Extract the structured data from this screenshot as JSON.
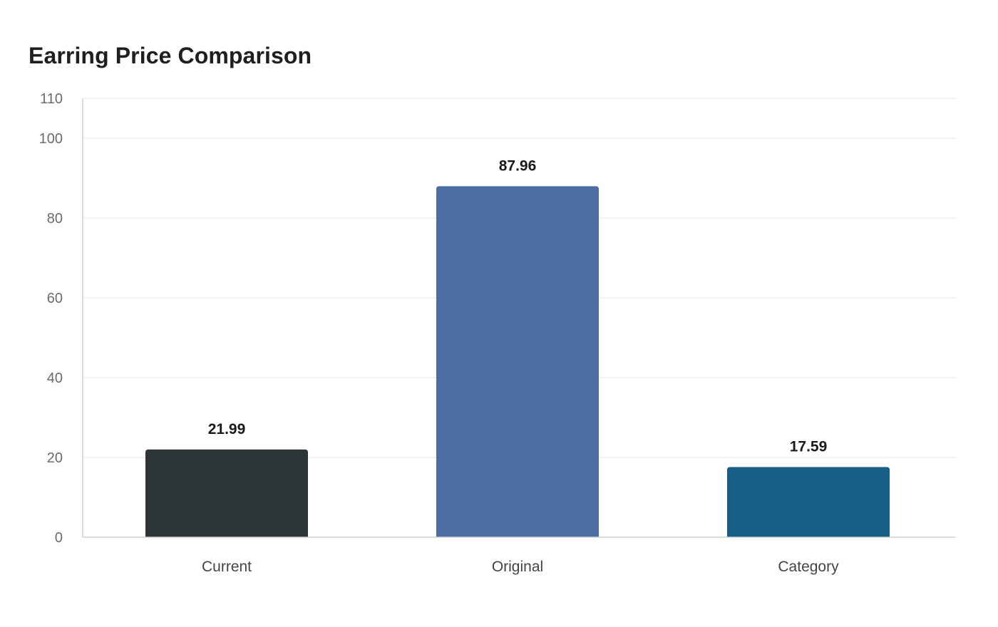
{
  "chart_data": {
    "type": "bar",
    "title": "Earring Price Comparison",
    "categories": [
      "Current",
      "Original",
      "Category"
    ],
    "values": [
      21.99,
      87.96,
      17.59
    ],
    "value_labels": [
      "21.99",
      "87.96",
      "17.59"
    ],
    "colors": [
      "#2e3538",
      "#4a6ea1",
      "#175f87"
    ],
    "ylim": [
      0,
      110
    ],
    "yticks": [
      0,
      20,
      40,
      60,
      80,
      100,
      110
    ],
    "ytick_labels": [
      "0",
      "20",
      "40",
      "60",
      "80",
      "100",
      "110"
    ],
    "xlabel": "",
    "ylabel": "",
    "grid": true,
    "legend": "none"
  }
}
